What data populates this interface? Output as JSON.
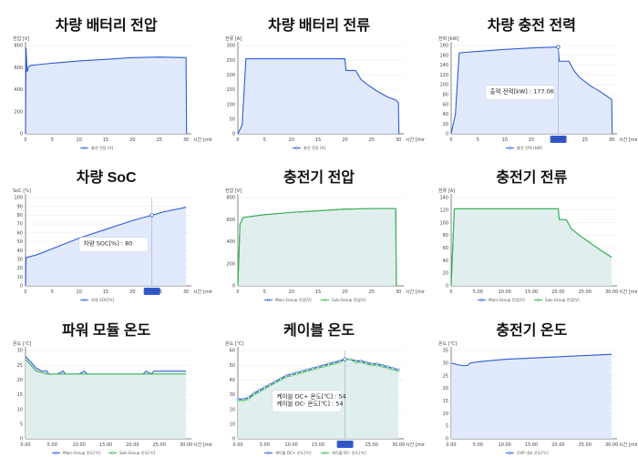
{
  "colors": {
    "blue": "#2f5bd8",
    "blue_fill": "#dbe6fb",
    "green": "#39b54a",
    "green_fill": "#e0f3e2",
    "grid": "#eeeeee",
    "badge": "#2f5bd8"
  },
  "chart_data": [
    {
      "type": "line",
      "title": "차량 배터리 전압",
      "ylabel": "전압 [V]",
      "xlabel_end": "시간 [min]",
      "xlim": [
        0,
        31
      ],
      "ylim": [
        0,
        800
      ],
      "x_ticks": [
        "0",
        "5",
        "10",
        "15",
        "20",
        "25",
        "30"
      ],
      "y_ticks": [
        "0",
        "200",
        "400",
        "600",
        "800"
      ],
      "series": [
        {
          "name": "충전 전압 [V]",
          "color": "blue",
          "marker": false,
          "points": [
            [
              0,
              0
            ],
            [
              0.1,
              780
            ],
            [
              0.3,
              560
            ],
            [
              0.6,
              610
            ],
            [
              1,
              620
            ],
            [
              3,
              630
            ],
            [
              5,
              640
            ],
            [
              10,
              660
            ],
            [
              15,
              675
            ],
            [
              20,
              690
            ],
            [
              25,
              695
            ],
            [
              30,
              690
            ],
            [
              30.1,
              0
            ]
          ]
        }
      ]
    },
    {
      "type": "line",
      "title": "차량 배터리 전류",
      "ylabel": "전류 [A]",
      "xlabel_end": "시간 [min]",
      "xlim": [
        0,
        31
      ],
      "ylim": [
        0,
        300
      ],
      "x_ticks": [
        "0",
        "5",
        "10",
        "15",
        "20",
        "25",
        "30"
      ],
      "y_ticks": [
        "0",
        "50",
        "100",
        "150",
        "200",
        "250",
        "300"
      ],
      "series": [
        {
          "name": "충전 전류 [A]",
          "color": "blue",
          "marker": false,
          "points": [
            [
              0,
              0
            ],
            [
              0.8,
              30
            ],
            [
              1.5,
              255
            ],
            [
              20,
              255
            ],
            [
              20.2,
              215
            ],
            [
              22,
              215
            ],
            [
              23,
              185
            ],
            [
              24,
              170
            ],
            [
              26,
              145
            ],
            [
              28,
              125
            ],
            [
              29.5,
              115
            ],
            [
              30,
              105
            ],
            [
              30.1,
              0
            ]
          ]
        }
      ]
    },
    {
      "type": "line",
      "title": "차량 충전 전력",
      "ylabel": "전력 [kW]",
      "xlabel_end": "시간 [min]",
      "xlim": [
        0,
        31
      ],
      "ylim": [
        0,
        180
      ],
      "x_ticks": [
        "0",
        "5",
        "10",
        "15",
        "20",
        "25",
        "30"
      ],
      "y_ticks": [
        "0",
        "20",
        "40",
        "60",
        "80",
        "100",
        "120",
        "140",
        "160",
        "180"
      ],
      "series": [
        {
          "name": "충전 전력 [kW]",
          "color": "blue",
          "marker": false,
          "points": [
            [
              0,
              0
            ],
            [
              0.8,
              40
            ],
            [
              1.5,
              165
            ],
            [
              5,
              168
            ],
            [
              10,
              172
            ],
            [
              15,
              175
            ],
            [
              20,
              177
            ],
            [
              20.2,
              148
            ],
            [
              22,
              148
            ],
            [
              23,
              128
            ],
            [
              24,
              115
            ],
            [
              26,
              98
            ],
            [
              28,
              85
            ],
            [
              30,
              70
            ],
            [
              30.1,
              0
            ]
          ]
        }
      ],
      "tooltip": {
        "x": 20.03,
        "lines": [
          "출력 전력[kW] : 177.06"
        ]
      },
      "badge": "20.03"
    },
    {
      "type": "line",
      "title": "차량 SoC",
      "ylabel": "SoC [%]",
      "xlabel_end": "시간 [min]",
      "xlim": [
        0,
        31
      ],
      "ylim": [
        0,
        100
      ],
      "x_ticks": [
        "0",
        "5",
        "10",
        "15",
        "20",
        "25",
        "30"
      ],
      "y_ticks": [
        "0",
        "10",
        "20",
        "30",
        "40",
        "50",
        "60",
        "70",
        "80",
        "90",
        "100"
      ],
      "series": [
        {
          "name": "차량 SOC[%]",
          "color": "blue",
          "marker": false,
          "points": [
            [
              0,
              0
            ],
            [
              0.1,
              32
            ],
            [
              2,
              35
            ],
            [
              5,
              42
            ],
            [
              10,
              54
            ],
            [
              15,
              64
            ],
            [
              20,
              74
            ],
            [
              23.63,
              80
            ],
            [
              26,
              84
            ],
            [
              30,
              89
            ]
          ]
        }
      ],
      "tooltip": {
        "x": 23.63,
        "lines": [
          "차량 SOC[%] : 80"
        ]
      },
      "badge": "23.63"
    },
    {
      "type": "line",
      "title": "충전기 전압",
      "ylabel": "전압 [V]",
      "xlabel_end": "시간 [min]",
      "xlim": [
        0,
        31
      ],
      "ylim": [
        0,
        800
      ],
      "x_ticks": [
        "0",
        "5",
        "10",
        "15",
        "20",
        "25",
        "30"
      ],
      "y_ticks": [
        "0",
        "200",
        "400",
        "600",
        "800"
      ],
      "series": [
        {
          "name": "Main-Group 전압[V]",
          "color": "blue",
          "marker": false,
          "points": [
            [
              0,
              0
            ],
            [
              0.4,
              560
            ],
            [
              1,
              620
            ],
            [
              5,
              645
            ],
            [
              10,
              665
            ],
            [
              15,
              680
            ],
            [
              20,
              695
            ],
            [
              25,
              700
            ],
            [
              29.5,
              700
            ],
            [
              29.6,
              0
            ]
          ]
        },
        {
          "name": "Sub-Group 전압[V]",
          "color": "green",
          "marker": false,
          "points": [
            [
              0,
              0
            ],
            [
              0.4,
              560
            ],
            [
              1,
              620
            ],
            [
              5,
              645
            ],
            [
              10,
              665
            ],
            [
              15,
              680
            ],
            [
              20,
              695
            ],
            [
              25,
              700
            ],
            [
              29.5,
              700
            ],
            [
              29.6,
              0
            ]
          ]
        }
      ]
    },
    {
      "type": "line",
      "title": "충전기 전류",
      "ylabel": "전류 [A]",
      "xlabel_end": "시간 [min]",
      "xlim": [
        0,
        31
      ],
      "ylim": [
        0,
        140
      ],
      "x_ticks": [
        "0",
        "5.00",
        "10.00",
        "15.00",
        "20.00",
        "25.00",
        "30.00"
      ],
      "y_ticks": [
        "0",
        "20",
        "40",
        "60",
        "80",
        "100",
        "120",
        "140"
      ],
      "series": [
        {
          "name": "Main-Group 전류[V]",
          "color": "blue",
          "marker": false,
          "points": [
            [
              0,
              0
            ],
            [
              0.6,
              122
            ],
            [
              20,
              122
            ],
            [
              20.2,
              105
            ],
            [
              21.5,
              105
            ],
            [
              22.5,
              90
            ],
            [
              24,
              80
            ],
            [
              26,
              68
            ],
            [
              28,
              56
            ],
            [
              29.5,
              48
            ],
            [
              30,
              45
            ]
          ]
        },
        {
          "name": "Sub-Group 전류[V]",
          "color": "green",
          "marker": false,
          "points": [
            [
              0,
              0
            ],
            [
              0.6,
              122
            ],
            [
              20,
              122
            ],
            [
              20.2,
              105
            ],
            [
              21.5,
              105
            ],
            [
              22.5,
              90
            ],
            [
              24,
              80
            ],
            [
              26,
              68
            ],
            [
              28,
              56
            ],
            [
              29.5,
              48
            ],
            [
              30,
              45
            ]
          ]
        }
      ]
    },
    {
      "type": "line",
      "title": "파워 모듈 온도",
      "ylabel": "온도 [℃]",
      "xlabel_end": "시간 [min]",
      "xlim": [
        0,
        31
      ],
      "ylim": [
        0,
        30
      ],
      "x_ticks": [
        "0.00",
        "5.00",
        "10.00",
        "15.00",
        "20.00",
        "25.00",
        "30.00"
      ],
      "y_ticks": [
        "0",
        "5",
        "10",
        "15",
        "20",
        "25",
        "30"
      ],
      "series": [
        {
          "name": "Main-Group 온도[℃]",
          "color": "blue",
          "marker": false,
          "points": [
            [
              0,
              28
            ],
            [
              0.5,
              27
            ],
            [
              1,
              26
            ],
            [
              1.5,
              25
            ],
            [
              2,
              24
            ],
            [
              3,
              23
            ],
            [
              4,
              23
            ],
            [
              4.3,
              22
            ],
            [
              5,
              22
            ],
            [
              6,
              22
            ],
            [
              7,
              23
            ],
            [
              7.5,
              22
            ],
            [
              10,
              22
            ],
            [
              11,
              23
            ],
            [
              11.5,
              22
            ],
            [
              22,
              22
            ],
            [
              22.5,
              23
            ],
            [
              23.5,
              22
            ],
            [
              24,
              23
            ],
            [
              30,
              23
            ]
          ]
        },
        {
          "name": "Sub-Group 온도[℃]",
          "color": "green",
          "marker": false,
          "points": [
            [
              0,
              27
            ],
            [
              0.5,
              26
            ],
            [
              1,
              25
            ],
            [
              1.5,
              24
            ],
            [
              2,
              23
            ],
            [
              3,
              22.5
            ],
            [
              4,
              22
            ],
            [
              30,
              22
            ]
          ]
        }
      ]
    },
    {
      "type": "line",
      "title": "케이블 온도",
      "ylabel": "온도 [℃]",
      "xlabel_end": "시간 [min]",
      "xlim": [
        0,
        31
      ],
      "ylim": [
        0,
        60
      ],
      "x_ticks": [
        "0.00",
        "5.00",
        "10.00",
        "15.00",
        "20.00",
        "25.00",
        "30.00"
      ],
      "y_ticks": [
        "0",
        "10",
        "20",
        "30",
        "40",
        "50",
        "60"
      ],
      "series": [
        {
          "name": "케이블 DC+ 온도[℃]",
          "color": "blue",
          "marker": true,
          "points": [
            [
              0,
              27
            ],
            [
              1,
              27
            ],
            [
              2,
              28
            ],
            [
              3,
              31
            ],
            [
              4,
              33
            ],
            [
              5,
              35
            ],
            [
              6,
              37
            ],
            [
              7,
              39
            ],
            [
              8,
              41
            ],
            [
              9,
              43
            ],
            [
              10,
              44
            ],
            [
              11,
              45
            ],
            [
              12,
              46
            ],
            [
              13,
              47
            ],
            [
              14,
              48
            ],
            [
              15,
              49
            ],
            [
              16,
              50
            ],
            [
              17,
              51
            ],
            [
              18,
              52
            ],
            [
              19,
              53
            ],
            [
              20,
              54
            ],
            [
              21,
              54
            ],
            [
              22,
              53
            ],
            [
              23,
              53
            ],
            [
              24,
              52
            ],
            [
              25,
              51
            ],
            [
              26,
              51
            ],
            [
              27,
              50
            ],
            [
              28,
              49
            ],
            [
              29,
              48
            ],
            [
              30,
              47
            ]
          ]
        },
        {
          "name": "케이블 DC- 온도[℃]",
          "color": "green",
          "marker": true,
          "points": [
            [
              0,
              26
            ],
            [
              1,
              26
            ],
            [
              2,
              27
            ],
            [
              3,
              30
            ],
            [
              4,
              32
            ],
            [
              5,
              34
            ],
            [
              6,
              36
            ],
            [
              7,
              38
            ],
            [
              8,
              40
            ],
            [
              9,
              42
            ],
            [
              10,
              43
            ],
            [
              11,
              44
            ],
            [
              12,
              45
            ],
            [
              13,
              46
            ],
            [
              14,
              47
            ],
            [
              15,
              48
            ],
            [
              16,
              49
            ],
            [
              17,
              50
            ],
            [
              18,
              51
            ],
            [
              19,
              52
            ],
            [
              20,
              54
            ],
            [
              21,
              54
            ],
            [
              22,
              52
            ],
            [
              23,
              52
            ],
            [
              24,
              51
            ],
            [
              25,
              50
            ],
            [
              26,
              50
            ],
            [
              27,
              49
            ],
            [
              28,
              48
            ],
            [
              29,
              47
            ],
            [
              30,
              46
            ]
          ]
        }
      ],
      "tooltip": {
        "x": 20.03,
        "lines": [
          "케이블 DC+ 온도[℃] : 54",
          "케이블 DC- 온도[℃] : 54"
        ]
      },
      "badge": "20.03"
    },
    {
      "type": "line",
      "title": "충전기 온도",
      "ylabel": "온도 [℃]",
      "xlabel_end": "시간 [min]",
      "xlim": [
        0,
        31
      ],
      "ylim": [
        0,
        35
      ],
      "x_ticks": [
        "0.00",
        "5.00",
        "10.00",
        "15.00",
        "20.00",
        "25.00",
        "30.00"
      ],
      "y_ticks": [
        "0",
        "5",
        "10",
        "15",
        "20",
        "25",
        "30",
        "35"
      ],
      "series": [
        {
          "name": "CHP 내부 온도[℃]",
          "color": "blue",
          "marker": false,
          "points": [
            [
              0,
              30
            ],
            [
              1,
              29.5
            ],
            [
              2,
              29
            ],
            [
              3,
              29
            ],
            [
              3.5,
              30
            ],
            [
              5,
              30.5
            ],
            [
              10,
              31.5
            ],
            [
              15,
              32
            ],
            [
              20,
              32.5
            ],
            [
              25,
              33
            ],
            [
              30,
              33.5
            ]
          ]
        }
      ]
    }
  ]
}
